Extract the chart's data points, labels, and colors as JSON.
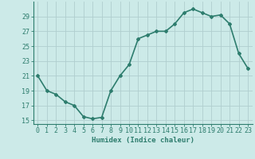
{
  "x": [
    0,
    1,
    2,
    3,
    4,
    5,
    6,
    7,
    8,
    9,
    10,
    11,
    12,
    13,
    14,
    15,
    16,
    17,
    18,
    19,
    20,
    21,
    22,
    23
  ],
  "y": [
    21,
    19,
    18.5,
    17.5,
    17,
    15.5,
    15.2,
    15.4,
    19,
    21,
    22.5,
    26,
    26.5,
    27,
    27,
    28,
    29.5,
    30,
    29.5,
    29,
    29.2,
    28,
    24,
    22
  ],
  "line_color": "#2e7d6e",
  "marker": "D",
  "marker_size": 2,
  "bg_color": "#cceae8",
  "grid_color": "#b0cece",
  "xlabel": "Humidex (Indice chaleur)",
  "xlim": [
    -0.5,
    23.5
  ],
  "ylim": [
    14.5,
    31
  ],
  "yticks": [
    15,
    17,
    19,
    21,
    23,
    25,
    27,
    29
  ],
  "xticks": [
    0,
    1,
    2,
    3,
    4,
    5,
    6,
    7,
    8,
    9,
    10,
    11,
    12,
    13,
    14,
    15,
    16,
    17,
    18,
    19,
    20,
    21,
    22,
    23
  ],
  "tick_color": "#2e7d6e",
  "axis_color": "#2e7d6e",
  "label_fontsize": 6.5,
  "tick_fontsize": 6,
  "linewidth": 1.2
}
